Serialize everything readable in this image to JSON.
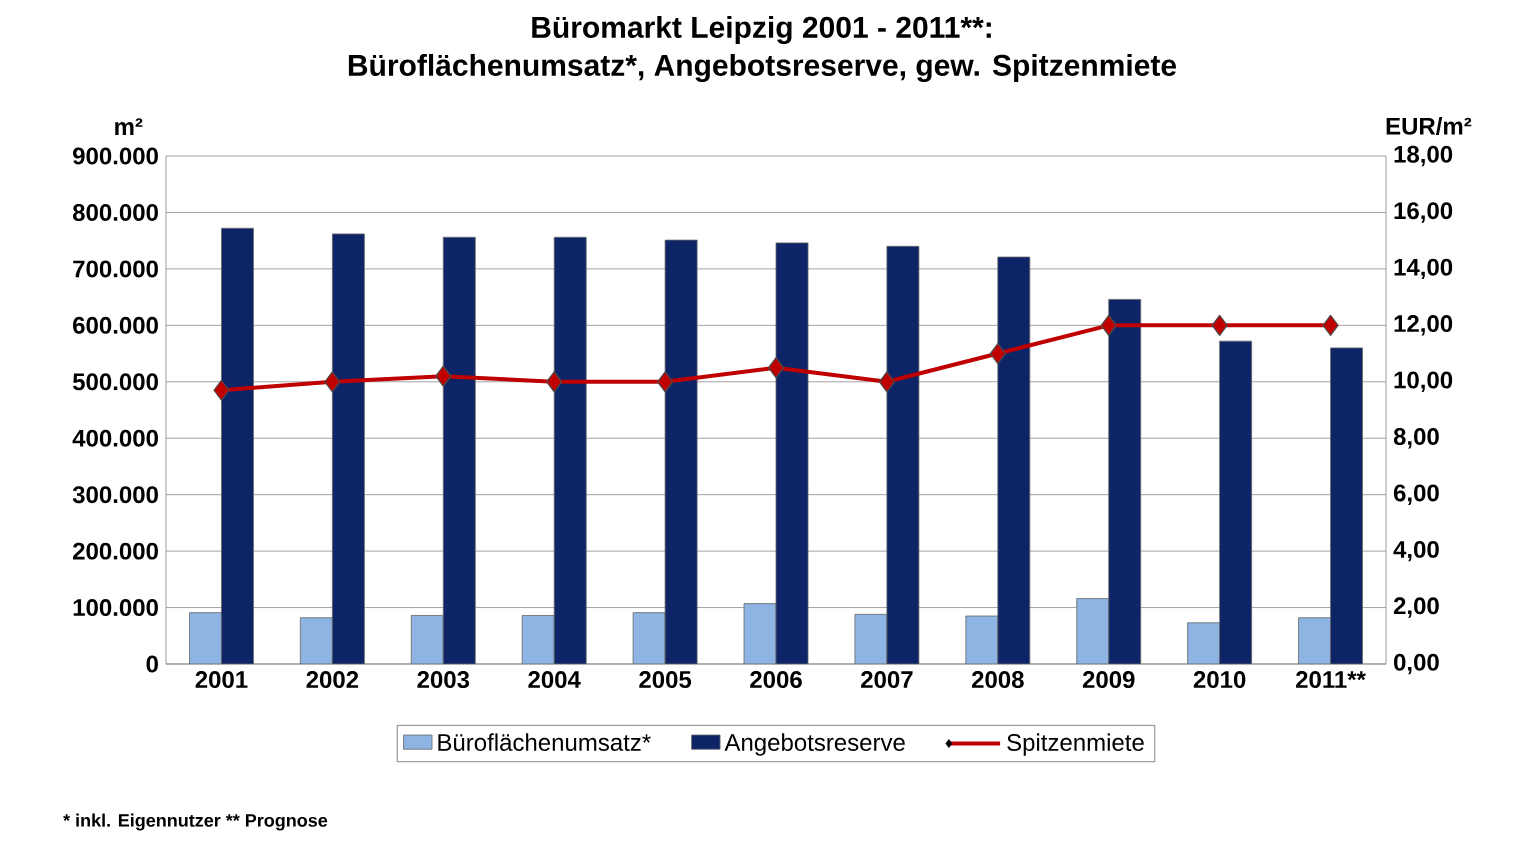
{
  "chart_data": {
    "type": "bar",
    "title": "Büromarkt Leipzig 2001 - 2011**:",
    "subtitle": "Büroflächenumsatz*, Angebotsreserve, gew. Spitzenmiete",
    "ylabel": "m²",
    "y2label": "EUR/m²",
    "categories": [
      "2001",
      "2002",
      "2003",
      "2004",
      "2005",
      "2006",
      "2007",
      "2008",
      "2009",
      "2010",
      "2011**"
    ],
    "series": [
      {
        "name": "Büroflächenumsatz*",
        "color": "#8db4e2",
        "values": [
          91000,
          82000,
          86000,
          86000,
          91000,
          107000,
          88000,
          85000,
          116000,
          73000,
          82000
        ]
      },
      {
        "name": "Angebotsreserve",
        "color": "#0d2567",
        "values": [
          772000,
          762000,
          756000,
          756000,
          751000,
          746000,
          740000,
          721000,
          646000,
          572000,
          560000
        ]
      },
      {
        "name": "Spitzenmiete",
        "type": "line",
        "axis": "y2",
        "color": "#c00000",
        "values": [
          9.7,
          10.0,
          10.2,
          10.0,
          10.0,
          10.5,
          10.0,
          11.0,
          12.0,
          12.0,
          12.0
        ]
      }
    ],
    "ylim": [
      0,
      900000
    ],
    "yticks": [
      {
        "value": 0,
        "label": "0"
      },
      {
        "value": 100000,
        "label": "100.000"
      },
      {
        "value": 200000,
        "label": "200.000"
      },
      {
        "value": 300000,
        "label": "300.000"
      },
      {
        "value": 400000,
        "label": "400.000"
      },
      {
        "value": 500000,
        "label": "500.000"
      },
      {
        "value": 600000,
        "label": "600.000"
      },
      {
        "value": 700000,
        "label": "700.000"
      },
      {
        "value": 800000,
        "label": "800.000"
      },
      {
        "value": 900000,
        "label": "900.000"
      }
    ],
    "y2lim": [
      0,
      18
    ],
    "y2ticks": [
      {
        "value": 0,
        "label": "0,00"
      },
      {
        "value": 2,
        "label": "2,00"
      },
      {
        "value": 4,
        "label": "4,00"
      },
      {
        "value": 6,
        "label": "6,00"
      },
      {
        "value": 8,
        "label": "8,00"
      },
      {
        "value": 10,
        "label": "10,00"
      },
      {
        "value": 12,
        "label": "12,00"
      },
      {
        "value": 14,
        "label": "14,00"
      },
      {
        "value": 16,
        "label": "16,00"
      },
      {
        "value": 18,
        "label": "18,00"
      }
    ],
    "grid": "y",
    "legend": "bottom",
    "marker": "diamond",
    "line_style": "solid",
    "annotations": [
      "* inkl. Eigennutzer  ** Prognose"
    ]
  }
}
